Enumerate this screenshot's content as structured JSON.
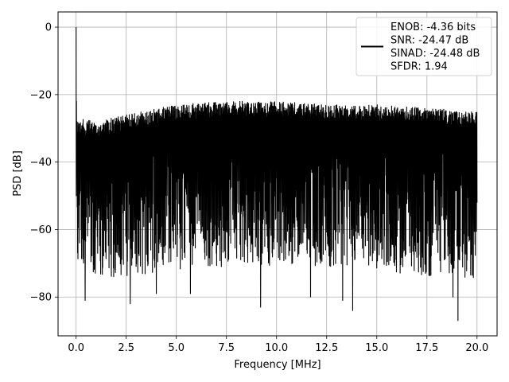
{
  "chart_data": {
    "type": "line",
    "xlabel": "Frequency [MHz]",
    "ylabel": "PSD [dB]",
    "xlim": [
      -0.9,
      21.0
    ],
    "ylim": [
      -91.5,
      4.5
    ],
    "xticks": [
      0.0,
      2.5,
      5.0,
      7.5,
      10.0,
      12.5,
      15.0,
      17.5,
      20.0
    ],
    "xtick_labels": [
      "0.0",
      "2.5",
      "5.0",
      "7.5",
      "10.0",
      "12.5",
      "15.0",
      "17.5",
      "20.0"
    ],
    "yticks": [
      0,
      -20,
      -40,
      -60,
      -80
    ],
    "ytick_labels": [
      "0",
      "−20",
      "−40",
      "−60",
      "−80"
    ],
    "grid": true,
    "legend_position": "top-right",
    "series": [
      {
        "name": "ENOB: -4.36 bits\nSNR: -24.47 dB\nSINAD: -24.48 dB\nSFDR: 1.94",
        "color": "#000000",
        "x_range": [
          0.0,
          20.0
        ],
        "peak": {
          "x": 0.0,
          "y": 0.0
        },
        "envelope": [
          {
            "x": 0.0,
            "top": -27,
            "bottom": -62
          },
          {
            "x": 1.0,
            "top": -28,
            "bottom": -66
          },
          {
            "x": 2.5,
            "top": -26,
            "bottom": -66
          },
          {
            "x": 5.0,
            "top": -23,
            "bottom": -64
          },
          {
            "x": 7.5,
            "top": -22,
            "bottom": -63
          },
          {
            "x": 10.0,
            "top": -22,
            "bottom": -63
          },
          {
            "x": 12.5,
            "top": -23,
            "bottom": -63
          },
          {
            "x": 15.0,
            "top": -23,
            "bottom": -64
          },
          {
            "x": 17.5,
            "top": -24,
            "bottom": -66
          },
          {
            "x": 20.0,
            "top": -25,
            "bottom": -67
          }
        ],
        "deep_minima": [
          {
            "x": 0.45,
            "y": -81
          },
          {
            "x": 2.7,
            "y": -82
          },
          {
            "x": 4.0,
            "y": -79
          },
          {
            "x": 5.7,
            "y": -79
          },
          {
            "x": 9.2,
            "y": -83
          },
          {
            "x": 11.7,
            "y": -80
          },
          {
            "x": 13.3,
            "y": -81
          },
          {
            "x": 13.8,
            "y": -84
          },
          {
            "x": 18.8,
            "y": -80
          },
          {
            "x": 19.05,
            "y": -87
          }
        ]
      }
    ]
  }
}
